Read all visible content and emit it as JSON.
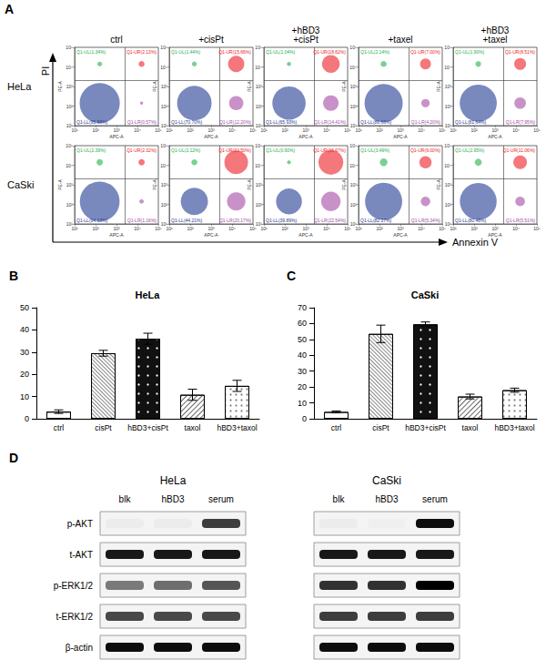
{
  "chart_data": [
    {
      "type": "scatter",
      "panel": "A",
      "log": true,
      "x_label": "Annexin V",
      "y_label": "PI",
      "columns": [
        "ctrl",
        "+cisPt",
        "+hBD3\n+cisPt",
        "+taxel",
        "+hBD3\n+taxel"
      ],
      "axes": {
        "x_label": "APC-A",
        "y_label": "PE-A",
        "xlim": [
          10,
          100000
        ],
        "ylim": [
          10,
          100000
        ],
        "xticks": [
          {
            "value": 10,
            "label": "10¹"
          },
          {
            "value": 100,
            "label": "10²"
          },
          {
            "value": 1000,
            "label": "10³"
          },
          {
            "value": 10000,
            "label": "10⁴"
          },
          {
            "value": 100000,
            "label": "10⁵"
          }
        ],
        "yticks": [
          {
            "value": 10,
            "label": "10¹"
          },
          {
            "value": 100,
            "label": "10²"
          },
          {
            "value": 1000,
            "label": "10³"
          },
          {
            "value": 10000,
            "label": "10⁴"
          },
          {
            "value": 100000,
            "label": "10⁵"
          }
        ]
      },
      "gate": {
        "x": 2500,
        "y": 2000
      },
      "quadrant_colors": [
        "#22b14c",
        "#ed1c24",
        "#1f3a93",
        "#a349a4"
      ],
      "rows": [
        {
          "name": "HeLa",
          "panels": [
            [
              {
                "label": "Q1-UL(1.34%)",
                "value": 1.34
              },
              {
                "label": "Q1-UR(2.13%)",
                "value": 2.13
              },
              {
                "label": "Q1-LL(95.96%)",
                "value": 95.96
              },
              {
                "label": "Q1-LR(0.57%)",
                "value": 0.57
              }
            ],
            [
              {
                "label": "Q1-UL(1.44%)",
                "value": 1.44
              },
              {
                "label": "Q1-UR(15.66%)",
                "value": 15.66
              },
              {
                "label": "Q1-LL(70.70%)",
                "value": 70.7
              },
              {
                "label": "Q1-LR(12.20%)",
                "value": 12.2
              }
            ],
            [
              {
                "label": "Q1-UL(1.04%)",
                "value": 1.04
              },
              {
                "label": "Q1-UR(18.62%)",
                "value": 18.62
              },
              {
                "label": "Q1-LL(65.93%)",
                "value": 65.93
              },
              {
                "label": "Q1-LR(14.41%)",
                "value": 14.41
              }
            ],
            [
              {
                "label": "Q1-UL(2.14%)",
                "value": 2.14
              },
              {
                "label": "Q1-UR(7.00%)",
                "value": 7.0
              },
              {
                "label": "Q1-LL(86.66%)",
                "value": 86.66
              },
              {
                "label": "Q1-LR(4.20%)",
                "value": 4.2
              }
            ],
            [
              {
                "label": "Q1-UL(1.90%)",
                "value": 1.9
              },
              {
                "label": "Q1-UR(8.51%)",
                "value": 8.51
              },
              {
                "label": "Q1-LL(81.64%)",
                "value": 81.64
              },
              {
                "label": "Q1-LR(7.95%)",
                "value": 7.95
              }
            ]
          ]
        },
        {
          "name": "CaSki",
          "panels": [
            [
              {
                "label": "Q1-UL(2.39%)",
                "value": 2.39
              },
              {
                "label": "Q1-UR(2.32%)",
                "value": 2.32
              },
              {
                "label": "Q1-LL(94.13%)",
                "value": 94.13
              },
              {
                "label": "Q1-LR(1.16%)",
                "value": 1.16
              }
            ],
            [
              {
                "label": "Q1-UL(2.12%)",
                "value": 2.12
              },
              {
                "label": "Q1-UR(33.50%)",
                "value": 33.5
              },
              {
                "label": "Q1-LL(44.21%)",
                "value": 44.21
              },
              {
                "label": "Q1-LR(20.17%)",
                "value": 20.17
              }
            ],
            [
              {
                "label": "Q1-UL(0.90%)",
                "value": 0.9
              },
              {
                "label": "Q1-UR(36.67%)",
                "value": 36.67
              },
              {
                "label": "Q1-LL(39.89%)",
                "value": 39.89
              },
              {
                "label": "Q1-LR(22.54%)",
                "value": 22.54
              }
            ],
            [
              {
                "label": "Q1-UL(3.49%)",
                "value": 3.49
              },
              {
                "label": "Q1-UR(9.00%)",
                "value": 9.0
              },
              {
                "label": "Q1-LL(82.17%)",
                "value": 82.17
              },
              {
                "label": "Q1-LR(5.34%)",
                "value": 5.34
              }
            ],
            [
              {
                "label": "Q1-UL(2.95%)",
                "value": 2.95
              },
              {
                "label": "Q1-UR(11.06%)",
                "value": 11.06
              },
              {
                "label": "Q1-LL(80.48%)",
                "value": 80.48
              },
              {
                "label": "Q1-LR(5.51%)",
                "value": 5.51
              }
            ]
          ]
        }
      ]
    },
    {
      "type": "bar",
      "panel": "B",
      "title": "HeLa",
      "categories": [
        "ctrl",
        "cisPt",
        "hBD3+cisPt",
        "taxol",
        "hBD3+taxol"
      ],
      "values": [
        3.2,
        29.5,
        36,
        10.8,
        14.8
      ],
      "errors": [
        0.8,
        1.3,
        2.5,
        2.5,
        2.5
      ],
      "colors": [
        "#ffffff",
        "#ffffff",
        "#111111",
        "#ffffff",
        "#ffffff"
      ],
      "ylim": [
        0,
        50
      ],
      "yticks": [
        0,
        10,
        20,
        30,
        40,
        50
      ],
      "grid": false
    },
    {
      "type": "bar",
      "panel": "C",
      "title": "CaSki",
      "categories": [
        "ctrl",
        "cisPt",
        "hBD3+cisPt",
        "taxol",
        "hBD3+taxol"
      ],
      "values": [
        4.3,
        53.5,
        59.5,
        14,
        18
      ],
      "errors": [
        0.6,
        5.5,
        1.5,
        1.5,
        1.3
      ],
      "colors": [
        "#ffffff",
        "#ffffff",
        "#111111",
        "#ffffff",
        "#ffffff"
      ],
      "ylim": [
        0,
        70
      ],
      "yticks": [
        0,
        10,
        20,
        30,
        40,
        50,
        60,
        70
      ],
      "grid": false
    }
  ],
  "blot": {
    "panel": "D",
    "rows": [
      "p-AKT",
      "t-AKT",
      "p-ERK1/2",
      "t-ERK1/2",
      "β-actin"
    ],
    "cell_lines": [
      {
        "name": "HeLa",
        "lanes": [
          "blk",
          "hBD3",
          "serum"
        ],
        "intensity": [
          [
            0.03,
            0.03,
            0.75
          ],
          [
            0.9,
            0.9,
            0.9
          ],
          [
            0.5,
            0.55,
            0.65
          ],
          [
            0.7,
            0.7,
            0.7
          ],
          [
            0.95,
            0.95,
            0.95
          ]
        ]
      },
      {
        "name": "CaSki",
        "lanes": [
          "blk",
          "hBD3",
          "serum"
        ],
        "intensity": [
          [
            0.03,
            0.02,
            0.95
          ],
          [
            0.9,
            0.9,
            0.9
          ],
          [
            0.8,
            0.8,
            1.0
          ],
          [
            0.75,
            0.75,
            0.75
          ],
          [
            0.95,
            0.95,
            0.95
          ]
        ]
      }
    ]
  }
}
